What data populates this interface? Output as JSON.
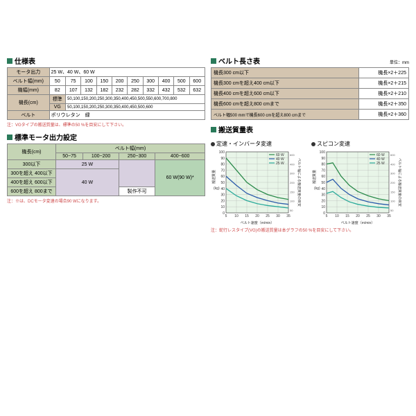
{
  "spec_table": {
    "title": "仕様表",
    "rows": [
      {
        "label": "モータ出力",
        "value": "25 W、40 W、60 W"
      },
      {
        "label": "ベルト幅(mm)",
        "cells": [
          "50",
          "75",
          "100",
          "150",
          "200",
          "250",
          "300",
          "400",
          "500",
          "600"
        ]
      },
      {
        "label": "機幅(mm)",
        "cells": [
          "82",
          "107",
          "132",
          "182",
          "232",
          "282",
          "332",
          "432",
          "532",
          "632"
        ]
      },
      {
        "label": "機長(cm)",
        "sub1": "標準",
        "val1": "50,100,150,200,250,300,350,400,450,500,550,600,700,800",
        "sub2": "VG",
        "val2": "50,100,150,200,250,300,350,400,450,500,600"
      },
      {
        "label": "ベルト",
        "value": "ポリウレタン　緑"
      }
    ],
    "note": "注：VGタイプの搬送質量は、標準の50 %を目安にして下さい。"
  },
  "output_table": {
    "title": "標準モータ出力設定",
    "row_header": "機長(cm)",
    "col_header": "ベルト幅(mm)",
    "cols": [
      "50~75",
      "100~200",
      "250~300",
      "400~600"
    ],
    "rows": [
      "300以下",
      "300を超え 400以下",
      "400を超え 600以下",
      "600を超え 800まで"
    ],
    "v25": "25 W",
    "v40": "40 W",
    "v60": "60 W(90 W)*",
    "vno": "製作不可",
    "note": "注：※は、DCモータ変速の場合90 Wになります。"
  },
  "belt_length": {
    "title": "ベルト長さ表",
    "unit": "単位：mm",
    "rows": [
      {
        "c": "機長300 cm以下",
        "f": "機長×2＋225"
      },
      {
        "c": "機長300 cmを超え400 cm以下",
        "f": "機長×2＋215"
      },
      {
        "c": "機長400 cmを超え600 cm以下",
        "f": "機長×2＋210"
      },
      {
        "c": "機長600 cmを超え800 cmまで",
        "f": "機長×2＋350"
      },
      {
        "c": "ベルト幅500 mmで機長600 cmを超え800 cmまで",
        "f": "機長×2＋360"
      }
    ]
  },
  "transport": {
    "title": "搬送質量表"
  },
  "chart1": {
    "title": "定速・インバータ変速",
    "ylabel": "搬送質量",
    "yunit": "(kg)",
    "xlabel": "ベルト速度（m/min）",
    "ylim": [
      0,
      100
    ],
    "xlim": [
      5,
      35
    ],
    "yticks": [
      0,
      10,
      20,
      30,
      40,
      50,
      60,
      70,
      80,
      90,
      100
    ],
    "xticks": [
      5,
      10,
      15,
      20,
      25,
      30,
      35
    ],
    "series": [
      {
        "name": "60 W",
        "color": "#2a8a4a",
        "data": [
          [
            5,
            90
          ],
          [
            10,
            70
          ],
          [
            15,
            50
          ],
          [
            20,
            38
          ],
          [
            25,
            30
          ],
          [
            30,
            25
          ],
          [
            35,
            22
          ]
        ]
      },
      {
        "name": "40 W",
        "color": "#2a5aaa",
        "data": [
          [
            5,
            60
          ],
          [
            10,
            45
          ],
          [
            15,
            32
          ],
          [
            20,
            25
          ],
          [
            25,
            20
          ],
          [
            30,
            16
          ],
          [
            35,
            14
          ]
        ]
      },
      {
        "name": "25 W",
        "color": "#2aaa9a",
        "data": [
          [
            5,
            40
          ],
          [
            10,
            28
          ],
          [
            15,
            20
          ],
          [
            20,
            15
          ],
          [
            25,
            12
          ],
          [
            30,
            10
          ],
          [
            35,
            8
          ]
        ]
      }
    ],
    "right_label": "ベルト幅による搬送質量の目安",
    "right_ticks": [
      "600",
      "400",
      "300",
      "200",
      "150",
      "100",
      "50"
    ],
    "right_unit": "mm"
  },
  "chart2": {
    "title": "スピコン変速",
    "ylabel": "搬送質量",
    "yunit": "(kg)",
    "xlabel": "ベルト速度（m/min）",
    "ylim": [
      0,
      100
    ],
    "xlim": [
      5,
      35
    ],
    "yticks": [
      0,
      10,
      20,
      30,
      40,
      50,
      60,
      70,
      80,
      90,
      100
    ],
    "xticks": [
      5,
      10,
      15,
      20,
      25,
      30,
      35
    ],
    "series": [
      {
        "name": "60 W",
        "color": "#2a8a4a",
        "data": [
          [
            5,
            80
          ],
          [
            8,
            82
          ],
          [
            12,
            60
          ],
          [
            16,
            45
          ],
          [
            20,
            35
          ],
          [
            25,
            28
          ],
          [
            30,
            23
          ],
          [
            35,
            20
          ]
        ]
      },
      {
        "name": "40 W",
        "color": "#2a5aaa",
        "data": [
          [
            5,
            50
          ],
          [
            8,
            55
          ],
          [
            12,
            40
          ],
          [
            16,
            30
          ],
          [
            20,
            23
          ],
          [
            25,
            18
          ],
          [
            30,
            15
          ],
          [
            35,
            13
          ]
        ]
      },
      {
        "name": "25 W",
        "color": "#2aaa9a",
        "data": [
          [
            5,
            32
          ],
          [
            8,
            35
          ],
          [
            12,
            25
          ],
          [
            16,
            18
          ],
          [
            20,
            14
          ],
          [
            25,
            11
          ],
          [
            30,
            9
          ],
          [
            35,
            8
          ]
        ]
      }
    ],
    "right_label": "ベルト幅による搬送質量の目安",
    "right_ticks": [
      "600",
      "400",
      "300",
      "200",
      "150",
      "100",
      "50"
    ],
    "right_unit": "mm"
  },
  "chart_note": "注：蛇行レスタイプ(VG)の搬送質量は本グラフの50 %を目安にして下さい。"
}
